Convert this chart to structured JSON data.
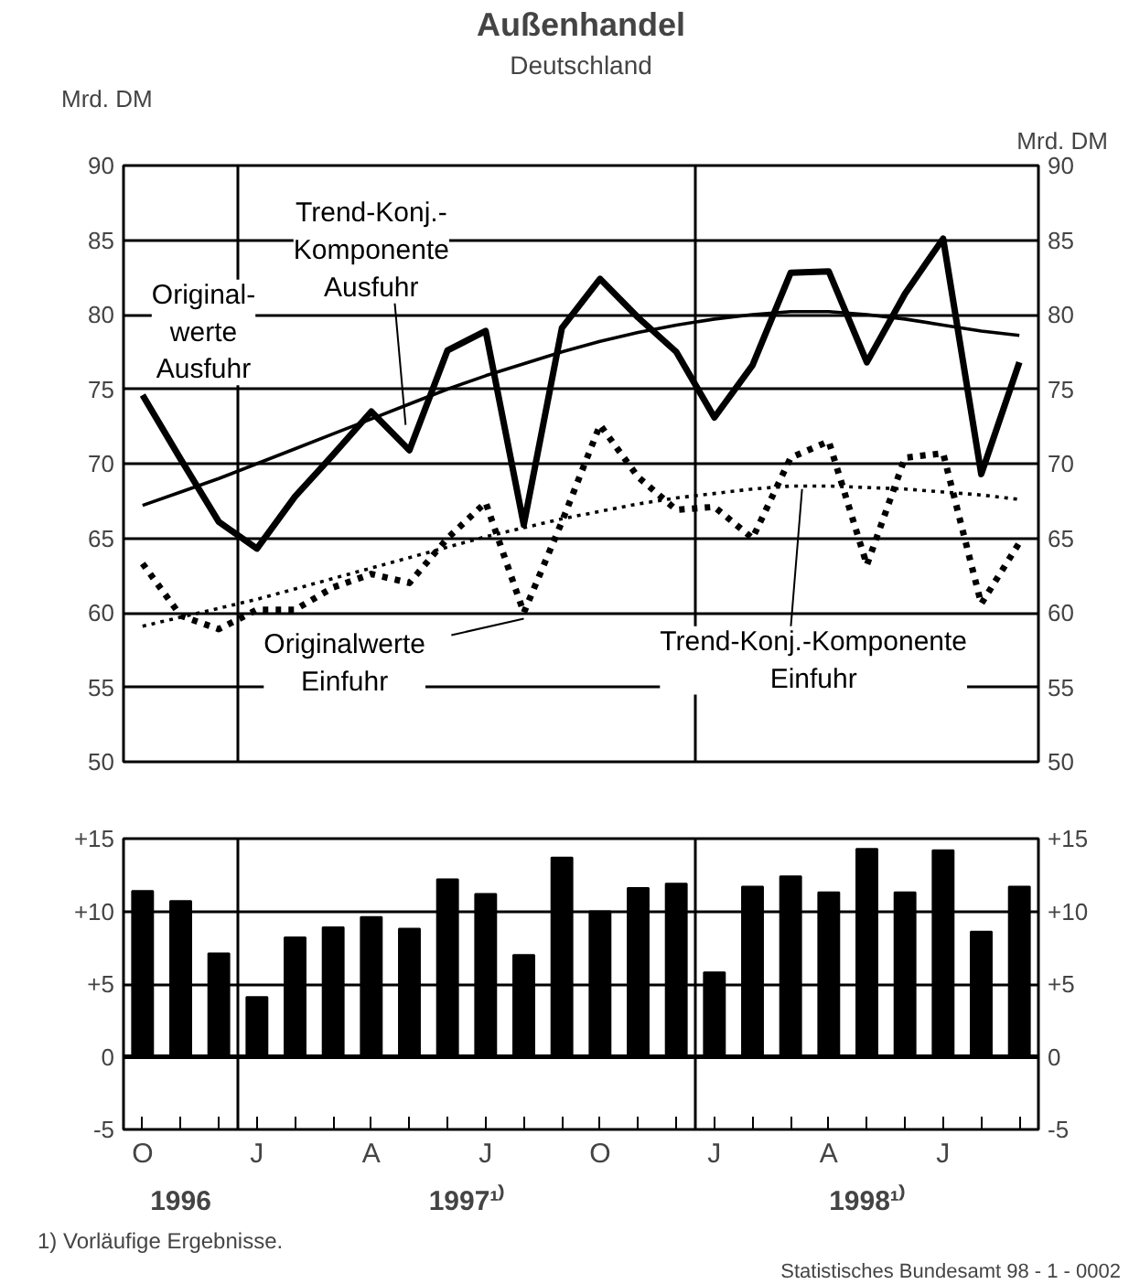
{
  "chart_data": [
    {
      "type": "line",
      "title": "Außenhandel",
      "subtitle": "Deutschland",
      "ylabel": "Mrd. DM",
      "y2label": "Mrd. DM",
      "categories": [
        null,
        null,
        null,
        null,
        null,
        null,
        null,
        null,
        null,
        null,
        null,
        null,
        null,
        null,
        null,
        null,
        null,
        null,
        null,
        null,
        null,
        null,
        null,
        null
      ],
      "series": [
        {
          "name": "Original-\nwerte\nAusfuhr",
          "color": "#000000",
          "line_style": "solid",
          "values": [
            74.6,
            70.3,
            66.1,
            64.3,
            67.8,
            70.6,
            73.5,
            70.9,
            77.6,
            78.9,
            65.9,
            79.1,
            82.4,
            79.8,
            77.5,
            73.1,
            76.6,
            82.8,
            82.9,
            76.8,
            81.4,
            85.1,
            69.3,
            76.8
          ]
        },
        {
          "name": "Trend-Konj.-\nKomponente\nAusfuhr",
          "color": "#000000",
          "line_style": "solid",
          "values": [
            67.2,
            68.1,
            69.0,
            70.0,
            71.0,
            72.0,
            73.0,
            74.0,
            75.0,
            75.9,
            76.7,
            77.5,
            78.2,
            78.8,
            79.3,
            79.7,
            80.0,
            80.2,
            80.2,
            80.0,
            79.7,
            79.3,
            78.9,
            78.6
          ]
        },
        {
          "name": "Originalwerte\nEinfuhr",
          "color": "#000000",
          "line_style": "dotted",
          "values": [
            63.3,
            59.8,
            58.9,
            60.2,
            60.2,
            61.7,
            62.6,
            62.0,
            65.0,
            67.4,
            60.0,
            66.1,
            72.6,
            69.1,
            66.9,
            67.1,
            65.0,
            70.4,
            71.5,
            63.2,
            70.4,
            70.7,
            60.6,
            64.7
          ]
        },
        {
          "name": "Trend-Konj.-Komponente\nEinfuhr",
          "color": "#000000",
          "line_style": "dotted",
          "values": [
            59.1,
            59.7,
            60.3,
            60.9,
            61.6,
            62.3,
            63.0,
            63.7,
            64.4,
            65.1,
            65.7,
            66.3,
            66.8,
            67.3,
            67.7,
            68.0,
            68.3,
            68.5,
            68.5,
            68.4,
            68.3,
            68.1,
            67.9,
            67.6
          ]
        }
      ],
      "ylim": [
        50,
        90
      ],
      "yticks": [
        50,
        55,
        60,
        65,
        70,
        75,
        80,
        85,
        90
      ],
      "y2lim": [
        50,
        90
      ],
      "y2ticks": [
        50,
        55,
        60,
        65,
        70,
        75,
        80,
        85,
        90
      ],
      "grid": "y",
      "tick_labels": "y"
    },
    {
      "type": "bar",
      "categories": [
        "O",
        null,
        null,
        "J",
        null,
        null,
        "A",
        null,
        null,
        "J",
        null,
        null,
        "O",
        null,
        null,
        "J",
        null,
        null,
        "A",
        null,
        null,
        "J",
        null,
        null
      ],
      "values": [
        11.4,
        10.7,
        7.1,
        4.1,
        8.2,
        8.9,
        9.6,
        8.8,
        12.2,
        11.2,
        7.0,
        13.7,
        10.0,
        11.6,
        11.9,
        5.8,
        11.7,
        12.4,
        11.3,
        14.3,
        11.3,
        14.2,
        8.6,
        11.7
      ],
      "color": "#000000",
      "ylim": [
        -5,
        15
      ],
      "yticks": [
        {
          "value": -5,
          "label": "-5"
        },
        {
          "value": 0,
          "label": "0"
        },
        {
          "value": 5,
          "label": "+5"
        },
        {
          "value": 10,
          "label": "+10"
        },
        {
          "value": 15,
          "label": "+15"
        }
      ],
      "y2lim": [
        -5,
        15
      ],
      "y2ticks": [
        {
          "value": -5,
          "label": "-5"
        },
        {
          "value": 0,
          "label": "0"
        },
        {
          "value": 5,
          "label": "+5"
        },
        {
          "value": 10,
          "label": "+10"
        },
        {
          "value": 15,
          "label": "+15"
        }
      ],
      "grid": "y",
      "annotations": [
        "1996",
        "1997¹⁾",
        "1998¹⁾",
        "1) Vorläufige Ergebnisse.",
        "Statistisches Bundesamt 98 - 1 - 0002"
      ]
    }
  ]
}
